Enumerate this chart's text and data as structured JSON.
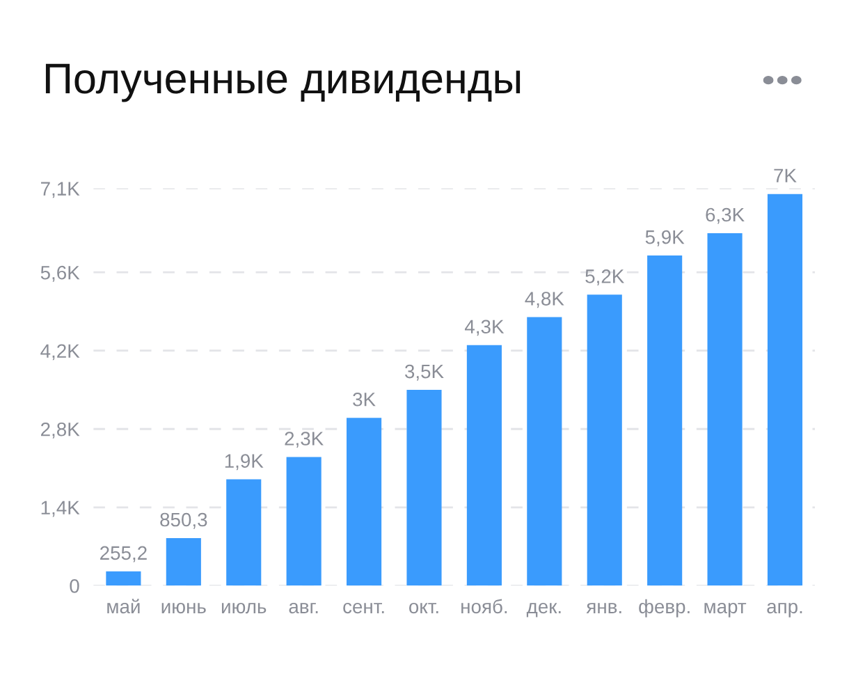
{
  "chart_data": {
    "type": "bar",
    "title": "Полученные дивиденды",
    "categories": [
      "май",
      "июнь",
      "июль",
      "авг.",
      "сент.",
      "окт.",
      "нояб.",
      "дек.",
      "янв.",
      "февр.",
      "март",
      "апр."
    ],
    "values": [
      255.2,
      850.3,
      1900,
      2300,
      3000,
      3500,
      4300,
      4800,
      5200,
      5900,
      6300,
      7000
    ],
    "value_labels": [
      "255,2",
      "850,3",
      "1,9K",
      "2,3K",
      "3K",
      "3,5K",
      "4,3K",
      "4,8K",
      "5,2K",
      "5,9K",
      "6,3K",
      "7K"
    ],
    "color": "#3a9bfd",
    "ylim": [
      0,
      7100
    ],
    "yticks": [
      0,
      {
        "value": 1400,
        "label": "1,4K"
      },
      {
        "value": 2800,
        "label": "2,8K"
      },
      {
        "value": 4200,
        "label": "4,2K"
      },
      {
        "value": 5600,
        "label": "5,6K"
      },
      {
        "value": 7100,
        "label": "7,1K"
      }
    ],
    "grid": "y"
  }
}
